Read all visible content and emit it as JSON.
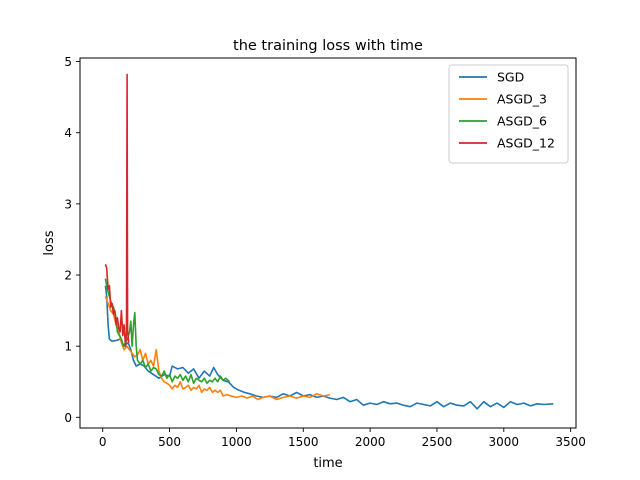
{
  "chart_data": {
    "type": "line",
    "title": "the training loss with time",
    "xlabel": "time",
    "ylabel": "loss",
    "xlim": [
      -170,
      3540
    ],
    "ylim": [
      -0.15,
      5.05
    ],
    "xticks": [
      0,
      500,
      1000,
      1500,
      2000,
      2500,
      3000,
      3500
    ],
    "yticks": [
      0,
      1,
      2,
      3,
      4,
      5
    ],
    "grid": false,
    "legend": "top-right",
    "series": [
      {
        "name": "SGD",
        "color": "#1f77b4",
        "points": [
          [
            20,
            1.85
          ],
          [
            30,
            1.7
          ],
          [
            40,
            1.3
          ],
          [
            50,
            1.1
          ],
          [
            70,
            1.07
          ],
          [
            100,
            1.08
          ],
          [
            130,
            1.1
          ],
          [
            160,
            1.0
          ],
          [
            190,
            1.05
          ],
          [
            210,
            0.95
          ],
          [
            230,
            0.8
          ],
          [
            250,
            0.72
          ],
          [
            280,
            0.75
          ],
          [
            310,
            0.72
          ],
          [
            340,
            0.65
          ],
          [
            380,
            0.6
          ],
          [
            420,
            0.55
          ],
          [
            460,
            0.6
          ],
          [
            500,
            0.58
          ],
          [
            520,
            0.72
          ],
          [
            560,
            0.68
          ],
          [
            600,
            0.7
          ],
          [
            640,
            0.62
          ],
          [
            680,
            0.68
          ],
          [
            720,
            0.55
          ],
          [
            760,
            0.65
          ],
          [
            800,
            0.58
          ],
          [
            830,
            0.7
          ],
          [
            860,
            0.6
          ],
          [
            900,
            0.52
          ],
          [
            940,
            0.5
          ],
          [
            980,
            0.42
          ],
          [
            1020,
            0.38
          ],
          [
            1060,
            0.35
          ],
          [
            1100,
            0.33
          ],
          [
            1150,
            0.3
          ],
          [
            1200,
            0.28
          ],
          [
            1250,
            0.3
          ],
          [
            1300,
            0.28
          ],
          [
            1350,
            0.33
          ],
          [
            1400,
            0.3
          ],
          [
            1450,
            0.35
          ],
          [
            1500,
            0.3
          ],
          [
            1550,
            0.32
          ],
          [
            1600,
            0.28
          ],
          [
            1650,
            0.3
          ],
          [
            1700,
            0.27
          ],
          [
            1750,
            0.25
          ],
          [
            1800,
            0.28
          ],
          [
            1850,
            0.22
          ],
          [
            1900,
            0.25
          ],
          [
            1950,
            0.17
          ],
          [
            2000,
            0.2
          ],
          [
            2050,
            0.18
          ],
          [
            2100,
            0.22
          ],
          [
            2150,
            0.19
          ],
          [
            2200,
            0.2
          ],
          [
            2250,
            0.17
          ],
          [
            2300,
            0.15
          ],
          [
            2350,
            0.2
          ],
          [
            2400,
            0.18
          ],
          [
            2450,
            0.16
          ],
          [
            2500,
            0.22
          ],
          [
            2550,
            0.15
          ],
          [
            2600,
            0.2
          ],
          [
            2650,
            0.17
          ],
          [
            2700,
            0.16
          ],
          [
            2750,
            0.22
          ],
          [
            2800,
            0.12
          ],
          [
            2850,
            0.22
          ],
          [
            2900,
            0.15
          ],
          [
            2950,
            0.2
          ],
          [
            3000,
            0.14
          ],
          [
            3050,
            0.22
          ],
          [
            3100,
            0.18
          ],
          [
            3150,
            0.2
          ],
          [
            3200,
            0.16
          ],
          [
            3250,
            0.19
          ],
          [
            3300,
            0.18
          ],
          [
            3370,
            0.19
          ]
        ]
      },
      {
        "name": "ASGD_3",
        "color": "#ff7f0e",
        "points": [
          [
            20,
            1.7
          ],
          [
            40,
            1.6
          ],
          [
            60,
            1.5
          ],
          [
            80,
            1.45
          ],
          [
            100,
            1.3
          ],
          [
            120,
            1.2
          ],
          [
            140,
            1.05
          ],
          [
            160,
            0.95
          ],
          [
            180,
            1.0
          ],
          [
            200,
            0.95
          ],
          [
            220,
            0.9
          ],
          [
            240,
            0.85
          ],
          [
            260,
            0.88
          ],
          [
            280,
            0.95
          ],
          [
            300,
            0.8
          ],
          [
            320,
            0.9
          ],
          [
            340,
            0.75
          ],
          [
            360,
            0.8
          ],
          [
            380,
            0.72
          ],
          [
            400,
            0.95
          ],
          [
            420,
            0.65
          ],
          [
            440,
            0.55
          ],
          [
            460,
            0.5
          ],
          [
            480,
            0.48
          ],
          [
            500,
            0.45
          ],
          [
            520,
            0.4
          ],
          [
            540,
            0.45
          ],
          [
            560,
            0.42
          ],
          [
            580,
            0.5
          ],
          [
            600,
            0.4
          ],
          [
            620,
            0.42
          ],
          [
            640,
            0.45
          ],
          [
            660,
            0.38
          ],
          [
            680,
            0.42
          ],
          [
            700,
            0.4
          ],
          [
            720,
            0.45
          ],
          [
            740,
            0.35
          ],
          [
            760,
            0.4
          ],
          [
            780,
            0.38
          ],
          [
            800,
            0.42
          ],
          [
            820,
            0.35
          ],
          [
            840,
            0.38
          ],
          [
            860,
            0.35
          ],
          [
            880,
            0.38
          ],
          [
            900,
            0.3
          ],
          [
            930,
            0.32
          ],
          [
            960,
            0.3
          ],
          [
            1000,
            0.28
          ],
          [
            1040,
            0.3
          ],
          [
            1080,
            0.27
          ],
          [
            1120,
            0.3
          ],
          [
            1160,
            0.25
          ],
          [
            1200,
            0.28
          ],
          [
            1250,
            0.3
          ],
          [
            1300,
            0.25
          ],
          [
            1350,
            0.28
          ],
          [
            1400,
            0.3
          ],
          [
            1450,
            0.27
          ],
          [
            1500,
            0.3
          ],
          [
            1550,
            0.28
          ],
          [
            1600,
            0.33
          ],
          [
            1650,
            0.3
          ],
          [
            1700,
            0.32
          ]
        ]
      },
      {
        "name": "ASGD_6",
        "color": "#2ca02c",
        "points": [
          [
            20,
            1.95
          ],
          [
            35,
            1.8
          ],
          [
            50,
            1.7
          ],
          [
            65,
            1.6
          ],
          [
            80,
            1.55
          ],
          [
            95,
            1.45
          ],
          [
            110,
            1.2
          ],
          [
            125,
            1.15
          ],
          [
            140,
            1.1
          ],
          [
            155,
            1.0
          ],
          [
            170,
            1.05
          ],
          [
            185,
            1.1
          ],
          [
            200,
            1.2
          ],
          [
            210,
            1.35
          ],
          [
            220,
            1.0
          ],
          [
            230,
            1.3
          ],
          [
            240,
            1.47
          ],
          [
            250,
            1.0
          ],
          [
            260,
            0.8
          ],
          [
            280,
            0.75
          ],
          [
            300,
            0.8
          ],
          [
            320,
            0.7
          ],
          [
            340,
            0.75
          ],
          [
            360,
            0.65
          ],
          [
            380,
            0.7
          ],
          [
            400,
            0.68
          ],
          [
            420,
            0.6
          ],
          [
            440,
            0.58
          ],
          [
            460,
            0.65
          ],
          [
            480,
            0.55
          ],
          [
            500,
            0.6
          ],
          [
            520,
            0.5
          ],
          [
            540,
            0.58
          ],
          [
            560,
            0.55
          ],
          [
            580,
            0.6
          ],
          [
            600,
            0.52
          ],
          [
            620,
            0.58
          ],
          [
            640,
            0.5
          ],
          [
            660,
            0.6
          ],
          [
            680,
            0.48
          ],
          [
            700,
            0.55
          ],
          [
            720,
            0.52
          ],
          [
            740,
            0.5
          ],
          [
            760,
            0.55
          ],
          [
            780,
            0.48
          ],
          [
            800,
            0.52
          ],
          [
            820,
            0.5
          ],
          [
            840,
            0.55
          ],
          [
            860,
            0.5
          ],
          [
            880,
            0.58
          ],
          [
            900,
            0.52
          ],
          [
            920,
            0.55
          ],
          [
            950,
            0.5
          ]
        ]
      },
      {
        "name": "ASGD_12",
        "color": "#d62728",
        "points": [
          [
            20,
            2.15
          ],
          [
            30,
            2.1
          ],
          [
            40,
            1.8
          ],
          [
            50,
            1.85
          ],
          [
            60,
            1.55
          ],
          [
            70,
            1.6
          ],
          [
            80,
            1.45
          ],
          [
            90,
            1.5
          ],
          [
            100,
            1.3
          ],
          [
            110,
            1.4
          ],
          [
            120,
            1.25
          ],
          [
            130,
            1.2
          ],
          [
            140,
            1.5
          ],
          [
            150,
            1.15
          ],
          [
            160,
            1.3
          ],
          [
            170,
            1.0
          ],
          [
            178,
            1.2
          ],
          [
            182,
            4.82
          ],
          [
            186,
            1.2
          ],
          [
            195,
            1.05
          ]
        ]
      }
    ]
  }
}
